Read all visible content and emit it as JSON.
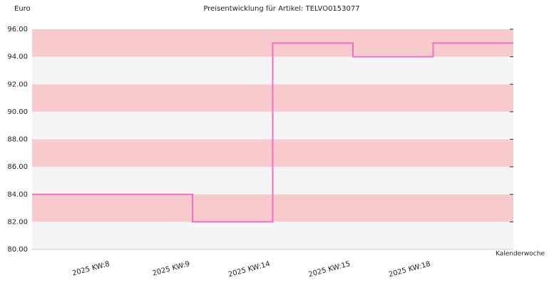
{
  "chart_data": {
    "type": "step",
    "title": "Preisentwicklung für Artikel: TELVO0153077",
    "y_label": "Euro",
    "x_label": "Kalenderwoche",
    "categories": [
      "2025 KW:8",
      "2025 KW:9",
      "2025 KW:14",
      "2025 KW:15",
      "2025 KW:18"
    ],
    "values": [
      84,
      82,
      95,
      94,
      95
    ],
    "color": "#f070c8",
    "band_colors": [
      "#f7cbcb",
      "#f5f5f5"
    ],
    "ylim": [
      80,
      96
    ],
    "yticks": [
      {
        "value": 80,
        "label": "80.00"
      },
      {
        "value": 82,
        "label": "82.00"
      },
      {
        "value": 84,
        "label": "84.00"
      },
      {
        "value": 86,
        "label": "86.00"
      },
      {
        "value": 88,
        "label": "88.00"
      },
      {
        "value": 90,
        "label": "90.00"
      },
      {
        "value": 92,
        "label": "92.00"
      },
      {
        "value": 94,
        "label": "94.00"
      },
      {
        "value": 96,
        "label": "96.00"
      }
    ]
  }
}
